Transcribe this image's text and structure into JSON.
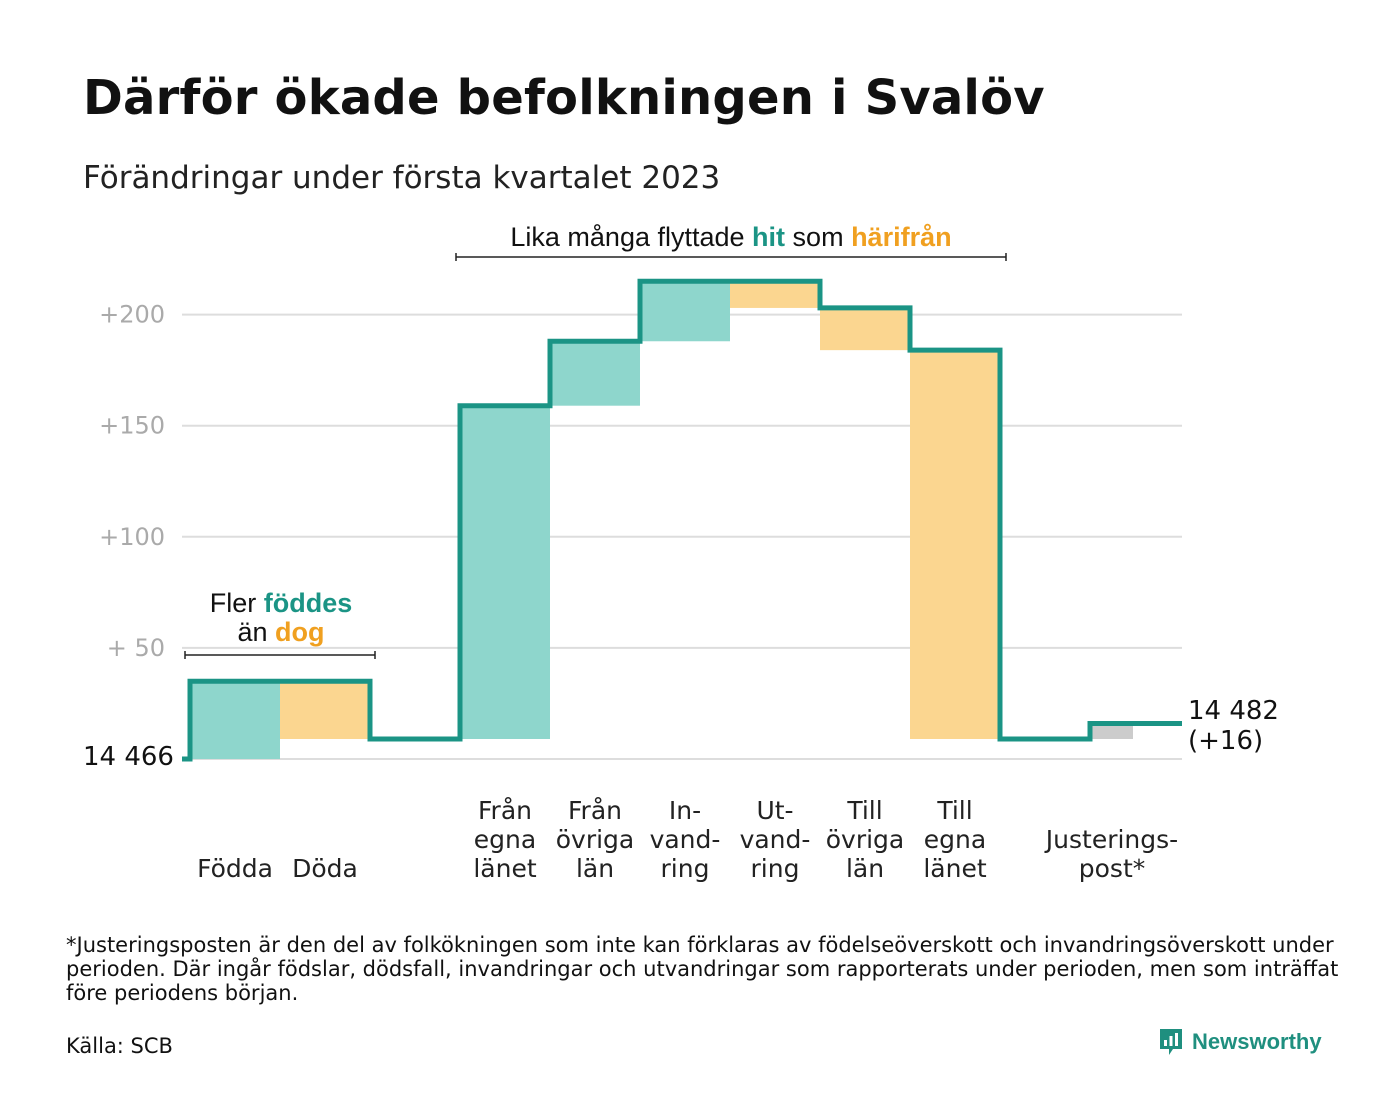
{
  "title": "Därför ökade befolkningen i Svalöv",
  "subtitle": "Förändringar under första kvartalet 2023",
  "footnote": "*Justeringsposten är den del av folkökningen som inte kan förklaras av födelseöverskott och invandringsöverskott under perioden. Där ingår födslar, dödsfall, invandringar och utvandringar som rapporterats under perioden, men som inträffat före periodens början.",
  "source": "Källa: SCB",
  "brand": "Newsworthy",
  "colors": {
    "increase": "#8ed6cc",
    "decrease": "#fbd690",
    "adjustment": "#cccccc",
    "line": "#1b9485",
    "grid": "#dddddd",
    "tick_text": "#aaaaaa",
    "teal_text": "#1b9485",
    "orange_text": "#f0a020"
  },
  "chart_data": {
    "type": "waterfall",
    "start_label": "14 466",
    "end_label_line1": "14 482",
    "end_label_line2": "(+16)",
    "yticks": [
      {
        "value": 200,
        "label": "+200"
      },
      {
        "value": 150,
        "label": "+150"
      },
      {
        "value": 100,
        "label": "+100"
      },
      {
        "value": 50,
        "label": "+ 50"
      }
    ],
    "ylim": [
      0,
      220
    ],
    "steps": [
      {
        "category": [
          "Födda"
        ],
        "value": 35,
        "kind": "increase"
      },
      {
        "category": [
          "Döda"
        ],
        "value": -26,
        "kind": "decrease"
      },
      {
        "category": [
          "Från",
          "egna",
          "länet"
        ],
        "value": 150,
        "kind": "increase"
      },
      {
        "category": [
          "Från",
          "övriga",
          "län"
        ],
        "value": 29,
        "kind": "increase"
      },
      {
        "category": [
          "In-",
          "vand-",
          "ring"
        ],
        "value": 27,
        "kind": "increase"
      },
      {
        "category": [
          "Ut-",
          "vand-",
          "ring"
        ],
        "value": -12,
        "kind": "decrease"
      },
      {
        "category": [
          "Till",
          "övriga",
          "län"
        ],
        "value": -19,
        "kind": "decrease"
      },
      {
        "category": [
          "Till",
          "egna",
          "länet"
        ],
        "value": -175,
        "kind": "decrease"
      },
      {
        "category": [
          "Justerings-",
          "post*"
        ],
        "value": 7,
        "kind": "adjustment"
      }
    ],
    "annotations": [
      {
        "parts": [
          {
            "text": "Fler ",
            "style": "plain"
          },
          {
            "text": "föddes",
            "style": "teal"
          }
        ]
      },
      {
        "parts": [
          {
            "text": "än ",
            "style": "plain"
          },
          {
            "text": "dog",
            "style": "orange"
          }
        ]
      },
      {
        "parts": [
          {
            "text": "Lika många flyttade ",
            "style": "plain"
          },
          {
            "text": "hit",
            "style": "teal"
          },
          {
            "text": " som ",
            "style": "plain"
          },
          {
            "text": "härifrån",
            "style": "orange"
          }
        ]
      }
    ]
  }
}
